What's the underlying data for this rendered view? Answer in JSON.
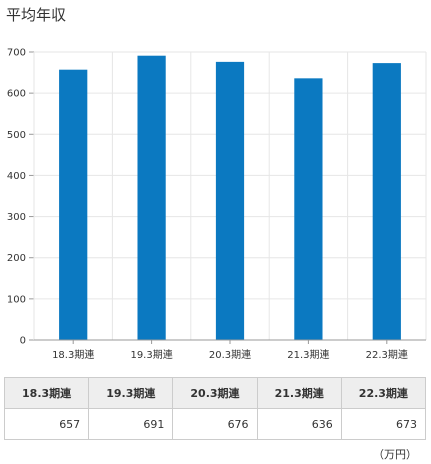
{
  "page": {
    "title": "平均年収"
  },
  "chart_data": {
    "type": "bar",
    "categories": [
      "18.3期連",
      "19.3期連",
      "20.3期連",
      "21.3期連",
      "22.3期連"
    ],
    "values": [
      657,
      691,
      676,
      636,
      673
    ],
    "ylim": [
      0,
      700
    ],
    "yticks": [
      0,
      100,
      200,
      300,
      400,
      500,
      600,
      700
    ],
    "grid": true,
    "bar_color": "#0b79c1",
    "grid_color": "#e6e6e6"
  },
  "table": {
    "headers": [
      "18.3期連",
      "19.3期連",
      "20.3期連",
      "21.3期連",
      "22.3期連"
    ],
    "values": [
      "657",
      "691",
      "676",
      "636",
      "673"
    ]
  },
  "unit_note": "（万円）"
}
